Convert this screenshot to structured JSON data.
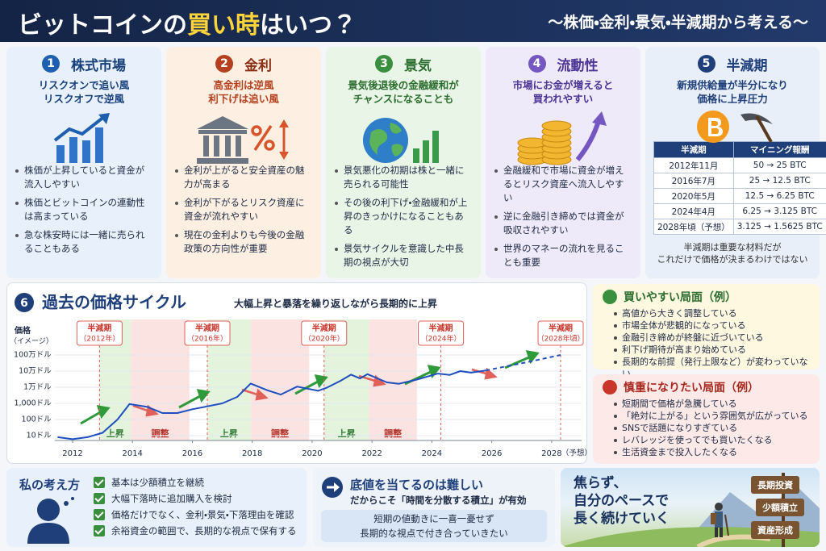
{
  "header": {
    "title_before": "ビットコインの",
    "title_highlight": "買い時",
    "title_after": "はいつ？",
    "subtitle": "〜株価・金利・景気・半減期から考える〜"
  },
  "cards": [
    {
      "number": 1,
      "title": "株式市場",
      "headline": [
        "リスクオンで追い風",
        "リスクオフで逆風"
      ],
      "bullets": [
        "株価が上昇していると資金が流入しやすい",
        "株価とビットコインの連動性は高まっている",
        "急な株安時には一緒に売られることもある"
      ]
    },
    {
      "number": 2,
      "title": "金利",
      "headline": [
        "高金利は逆風",
        "利下げは追い風"
      ],
      "bullets": [
        "金利が上がると安全資産の魅力が高まる",
        "金利が下がるとリスク資産に資金が流れやすい",
        "現在の金利よりも今後の金融政策の方向性が重要"
      ]
    },
    {
      "number": 3,
      "title": "景気",
      "headline": [
        "景気後退後の金融緩和が",
        "チャンスになることも"
      ],
      "bullets": [
        "景気悪化の初期は株と一緒に売られる可能性",
        "その後の利下げ・金融緩和が上昇のきっかけになることもある",
        "景気サイクルを意識した中長期の視点が大切"
      ]
    },
    {
      "number": 4,
      "title": "流動性",
      "headline": [
        "市場にお金が増えると",
        "買われやすい"
      ],
      "bullets": [
        "金融緩和で市場に資金が増えるとリスク資産へ流入しやすい",
        "逆に金融引き締めでは資金が吸収されやすい",
        "世界のマネーの流れを見ることも重要"
      ]
    },
    {
      "number": 5,
      "title": "半減期",
      "headline": [
        "新規供給量が半分になり",
        "価格に上昇圧力"
      ],
      "table": {
        "header": [
          "半減期",
          "マイニング報酬"
        ],
        "rows": [
          [
            "2012年11月",
            "50 → 25 BTC"
          ],
          [
            "2016年7月",
            "25 → 12.5 BTC"
          ],
          [
            "2020年5月",
            "12.5 → 6.25 BTC"
          ],
          [
            "2024年4月",
            "6.25 → 3.125 BTC"
          ],
          [
            "2028年頃（予想）",
            "3.125 → 1.5625 BTC"
          ]
        ]
      },
      "note": [
        "半減期は重要な材料だが",
        "これだけで価格が決まるわけではない"
      ]
    }
  ],
  "cycle": {
    "number": 6,
    "title": "過去の価格サイクル",
    "subtitle": "大幅上昇と暴落を繰り返しながら長期的に上昇"
  },
  "chart_data": {
    "type": "line",
    "y_label": [
      "価格",
      "（イメージ）"
    ],
    "log_scale": true,
    "ylim": [
      5,
      2000000
    ],
    "yticks": [
      {
        "value": 10,
        "label": "10ドル"
      },
      {
        "value": 100,
        "label": "100ドル"
      },
      {
        "value": 1000,
        "label": "1,000ドル"
      },
      {
        "value": 10000,
        "label": "1万ドル"
      },
      {
        "value": 100000,
        "label": "10万ドル"
      },
      {
        "value": 1000000,
        "label": "100万ドル"
      }
    ],
    "grid": true,
    "xlim": [
      2011.4,
      2029.0
    ],
    "xticks": [
      2012,
      2014,
      2016,
      2018,
      2020,
      2022,
      2024,
      2026,
      2028
    ],
    "x_note": "（予想）",
    "x": [
      2011.5,
      2012.0,
      2012.5,
      2013.0,
      2013.5,
      2013.9,
      2014.5,
      2015.0,
      2015.5,
      2016.0,
      2016.5,
      2017.0,
      2017.5,
      2017.95,
      2018.5,
      2018.95,
      2019.5,
      2020.2,
      2020.5,
      2020.95,
      2021.3,
      2021.6,
      2021.85,
      2022.5,
      2022.9,
      2023.5,
      2024.2,
      2024.6,
      2024.95,
      2025.3,
      2025.8,
      2026.5,
      2027.3,
      2028.3
    ],
    "series": [
      {
        "color": "#1f4fbf",
        "values": [
          8,
          6,
          8,
          15,
          100,
          900,
          600,
          250,
          250,
          430,
          650,
          1000,
          2500,
          17000,
          6500,
          3500,
          11000,
          6000,
          9500,
          25000,
          60000,
          35000,
          65000,
          20000,
          16500,
          30000,
          70000,
          58000,
          100000,
          80000,
          110000,
          null,
          null,
          null
        ]
      },
      {
        "color": "#1f4fbf",
        "dashed": true,
        "values": [
          null,
          null,
          null,
          null,
          null,
          null,
          null,
          null,
          null,
          null,
          null,
          null,
          null,
          null,
          null,
          null,
          null,
          null,
          null,
          null,
          null,
          null,
          null,
          null,
          null,
          null,
          null,
          null,
          null,
          null,
          110000,
          200000,
          400000,
          1000000
        ]
      }
    ],
    "halvings": [
      {
        "label": "半減期",
        "sub": "（2012年）",
        "x": 2012.9
      },
      {
        "label": "半減期",
        "sub": "（2016年）",
        "x": 2016.5
      },
      {
        "label": "半減期",
        "sub": "（2020年）",
        "x": 2020.4
      },
      {
        "label": "半減期",
        "sub": "（2024年）",
        "x": 2024.3
      },
      {
        "label": "半減期",
        "sub": "（2028年頃）",
        "x": 2028.3
      }
    ],
    "phases": [
      {
        "label": "上昇",
        "start": 2012.9,
        "end": 2013.95,
        "color": "#e3f3dc"
      },
      {
        "label": "調整",
        "start": 2013.95,
        "end": 2015.9,
        "color": "#fbe3e1"
      },
      {
        "label": "上昇",
        "start": 2016.5,
        "end": 2017.95,
        "color": "#e3f3dc"
      },
      {
        "label": "調整",
        "start": 2017.95,
        "end": 2019.9,
        "color": "#fbe3e1"
      },
      {
        "label": "上昇",
        "start": 2020.4,
        "end": 2021.9,
        "color": "#e3f3dc"
      },
      {
        "label": "調整",
        "start": 2021.9,
        "end": 2023.5,
        "color": "#fbe3e1"
      }
    ]
  },
  "buy_panel": {
    "title": "買いやすい局面（例）",
    "items": [
      "高値から大きく調整している",
      "市場全体が悲観的になっている",
      "金融引き締めが終盤に近づいている",
      "利下げ期待が高まり始めている",
      "長期的な前提（発行上限など）が変わっていない"
    ]
  },
  "caution_panel": {
    "title": "慎重になりたい局面（例）",
    "items": [
      "短期間で価格が急騰している",
      "「絶対に上がる」という雰囲気が広がっている",
      "SNSで話題になりすぎている",
      "レバレッジを使ってでも買いたくなる",
      "生活資金まで投入したくなる"
    ]
  },
  "my_view": {
    "title": "私の考え方",
    "items": [
      "基本は少額積立を継続",
      "大幅下落時に追加購入を検討",
      "価格だけでなく、金利・景気・下落理由を確認",
      "余裕資金の範囲で、長期的な視点で保有する"
    ]
  },
  "timing": {
    "title": "底値を当てるのは難しい",
    "lead": "だからこそ「時間を分散する積立」が有効",
    "note": [
      "短期の値動きに一喜一憂せず",
      "長期的な視点で付き合っていきたい"
    ]
  },
  "motto": {
    "lines": [
      "焦らず、",
      "自分のペースで",
      "長く続けていく"
    ],
    "signs": [
      "長期投資",
      "少額積立",
      "資産形成"
    ]
  }
}
